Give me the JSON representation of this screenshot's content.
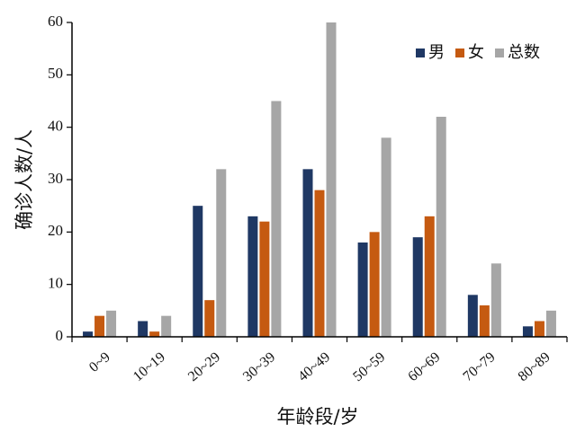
{
  "chart_data": {
    "type": "bar",
    "categories": [
      "0~9",
      "10~19",
      "20~29",
      "30~39",
      "40~49",
      "50~59",
      "60~69",
      "70~79",
      "80~89"
    ],
    "series": [
      {
        "name": "男",
        "color": "#1f3864",
        "values": [
          1,
          3,
          25,
          23,
          32,
          18,
          19,
          8,
          2
        ]
      },
      {
        "name": "女",
        "color": "#c55a11",
        "values": [
          4,
          1,
          7,
          22,
          28,
          20,
          23,
          6,
          3
        ]
      },
      {
        "name": "总数",
        "color": "#a6a6a6",
        "values": [
          5,
          4,
          32,
          45,
          60,
          38,
          42,
          14,
          5
        ]
      }
    ],
    "xlabel": "年龄段/岁",
    "ylabel": "确诊人数/人",
    "ylim": [
      0,
      60
    ],
    "yticks": [
      0,
      10,
      20,
      30,
      40,
      50,
      60
    ],
    "grid": false,
    "legend_position": "top-right"
  }
}
